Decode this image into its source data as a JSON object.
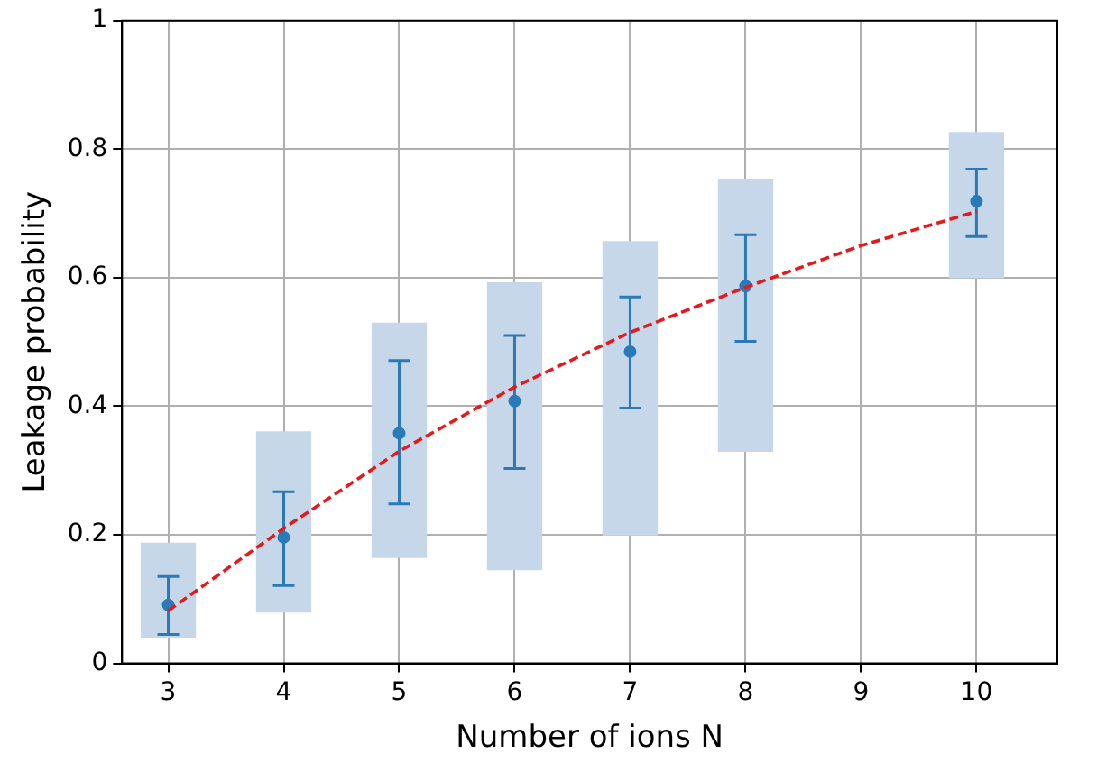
{
  "chart_data": {
    "type": "scatter",
    "xlabel": "Number of ions N",
    "ylabel": "Leakage probability",
    "xlim": [
      2.6,
      10.7
    ],
    "xticks": [
      3,
      4,
      5,
      6,
      7,
      8,
      9,
      10
    ],
    "ylim": [
      0,
      1
    ],
    "yticks": [
      0,
      0.2,
      0.4,
      0.6,
      0.8,
      1.0
    ],
    "grid": true,
    "series": [
      {
        "type": "bar",
        "color": "#c6d7ea",
        "x": [
          3,
          4,
          5,
          6,
          7,
          8,
          10
        ],
        "base": [
          0.041,
          0.08,
          0.165,
          0.146,
          0.2,
          0.33,
          0.6
        ],
        "values": [
          0.146,
          0.28,
          0.364,
          0.446,
          0.456,
          0.422,
          0.226
        ]
      },
      {
        "type": "scatter",
        "color": "#2a7ab8",
        "marker": "circle",
        "x": [
          3,
          4,
          5,
          6,
          7,
          8,
          10
        ],
        "values": [
          0.091,
          0.196,
          0.358,
          0.408,
          0.485,
          0.587,
          0.719
        ],
        "errors": [
          [
            0.045,
            0.135
          ],
          [
            0.121,
            0.267
          ],
          [
            0.248,
            0.471
          ],
          [
            0.303,
            0.51
          ],
          [
            0.397,
            0.57
          ],
          [
            0.501,
            0.667
          ],
          [
            0.664,
            0.769
          ]
        ]
      },
      {
        "type": "line",
        "color": "#e31a1c",
        "marker": "none",
        "line_style": "dashed",
        "x": [
          3,
          4,
          5,
          6,
          7,
          8,
          9,
          10
        ],
        "values": [
          0.082,
          0.21,
          0.33,
          0.43,
          0.515,
          0.585,
          0.65,
          0.703
        ]
      }
    ]
  }
}
